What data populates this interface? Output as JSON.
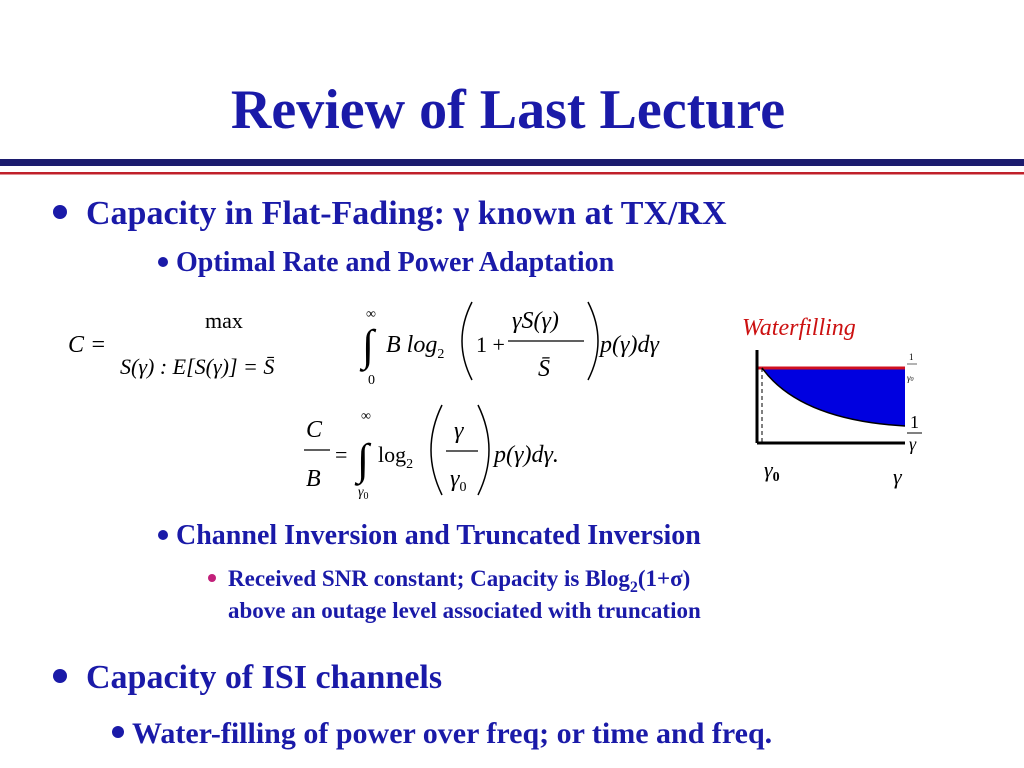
{
  "title": "Review of Last Lecture",
  "bullets": [
    {
      "text": "Capacity in Flat-Fading: γ known at TX/RX",
      "children": [
        {
          "text": "Optimal Rate and Power Adaptation"
        },
        {
          "text": "Channel Inversion and Truncated Inversion",
          "children": [
            {
              "parts": [
                "Received SNR constant; Capacity is Blog",
                "2",
                "(1+σ)"
              ],
              "continuation": "above an outage level associated with truncation"
            }
          ]
        }
      ]
    },
    {
      "text": "Capacity of ISI channels",
      "children": [
        {
          "text": "Water-filling of power over freq; or time and freq."
        }
      ]
    }
  ],
  "eq1": {
    "lhs": "C =",
    "max": "max",
    "constraint": "S(γ) : E[S(γ)] = S̄",
    "int": "∫",
    "upper": "∞",
    "lower": "0",
    "integrand": "B log",
    "base": "2",
    "one": "1 +",
    "num": "γS(γ)",
    "den": "S̄",
    "tail": "p(γ)dγ"
  },
  "eq2": {
    "num": "C",
    "den": "B",
    "eq": "=",
    "int": "∫",
    "upper": "∞",
    "lower": "γ",
    "lower_sub": "0",
    "log": "log",
    "base": "2",
    "frac_num": "γ",
    "frac_den": "γ",
    "frac_den_sub": "0",
    "tail": "p(γ)dγ."
  },
  "figure": {
    "title": "Waterfilling",
    "top_num": "1",
    "top_den": "γ",
    "top_den_sub": "0",
    "side_num": "1",
    "side_den": "γ",
    "x_mark": "γ",
    "x_mark_sub": "0",
    "x_label": "γ"
  }
}
